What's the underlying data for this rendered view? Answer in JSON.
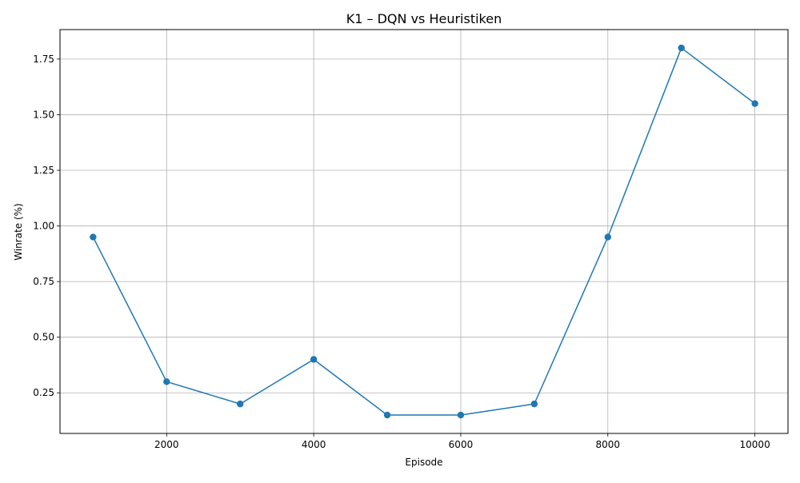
{
  "chart_data": {
    "type": "line",
    "title": "K1 – DQN vs Heuristiken",
    "xlabel": "Episode",
    "ylabel": "Winrate (%)",
    "x": [
      1000,
      2000,
      3000,
      4000,
      5000,
      6000,
      7000,
      8000,
      9000,
      10000
    ],
    "series": [
      {
        "values": [
          0.95,
          0.3,
          0.2,
          0.4,
          0.15,
          0.15,
          0.2,
          0.95,
          1.8,
          1.55
        ]
      }
    ],
    "xlim": [
      550,
      10450
    ],
    "ylim": [
      0.0675,
      1.8825
    ],
    "xticks": [
      2000,
      4000,
      6000,
      8000,
      10000
    ],
    "yticks": [
      0.25,
      0.5,
      0.75,
      1.0,
      1.25,
      1.5,
      1.75
    ],
    "xtick_labels": [
      "2000",
      "4000",
      "6000",
      "8000",
      "10000"
    ],
    "ytick_labels": [
      "0.25",
      "0.50",
      "0.75",
      "1.00",
      "1.25",
      "1.50",
      "1.75"
    ],
    "grid": true,
    "markers": true,
    "colors": {
      "line": "#1f77b4",
      "grid": "#b0b0b0",
      "axes": "#000000"
    }
  }
}
